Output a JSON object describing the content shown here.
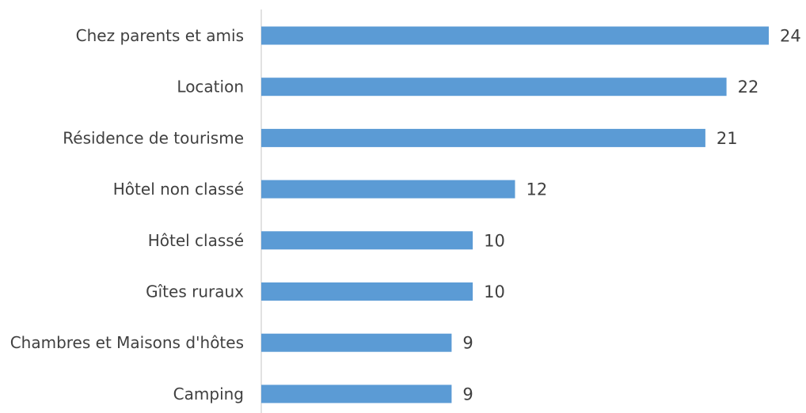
{
  "chart_data": {
    "type": "bar",
    "orientation": "horizontal",
    "title": "",
    "xlabel": "",
    "ylabel": "",
    "categories": [
      "Chez parents et amis",
      "Location",
      "Résidence de tourisme",
      "Hôtel non classé",
      "Hôtel classé",
      "Gîtes ruraux",
      "Chambres et Maisons d'hôtes",
      "Camping"
    ],
    "values": [
      24,
      22,
      21,
      12,
      10,
      10,
      9,
      9
    ],
    "data_labels": [
      "24",
      "22",
      "21",
      "12",
      "10",
      "10",
      "9",
      "9"
    ],
    "xlim": [
      0,
      24
    ],
    "grid": false,
    "legend": "none",
    "colors": {
      "bar": "#5b9bd5",
      "axis": "#d9d9d9",
      "text": "#404040"
    }
  }
}
